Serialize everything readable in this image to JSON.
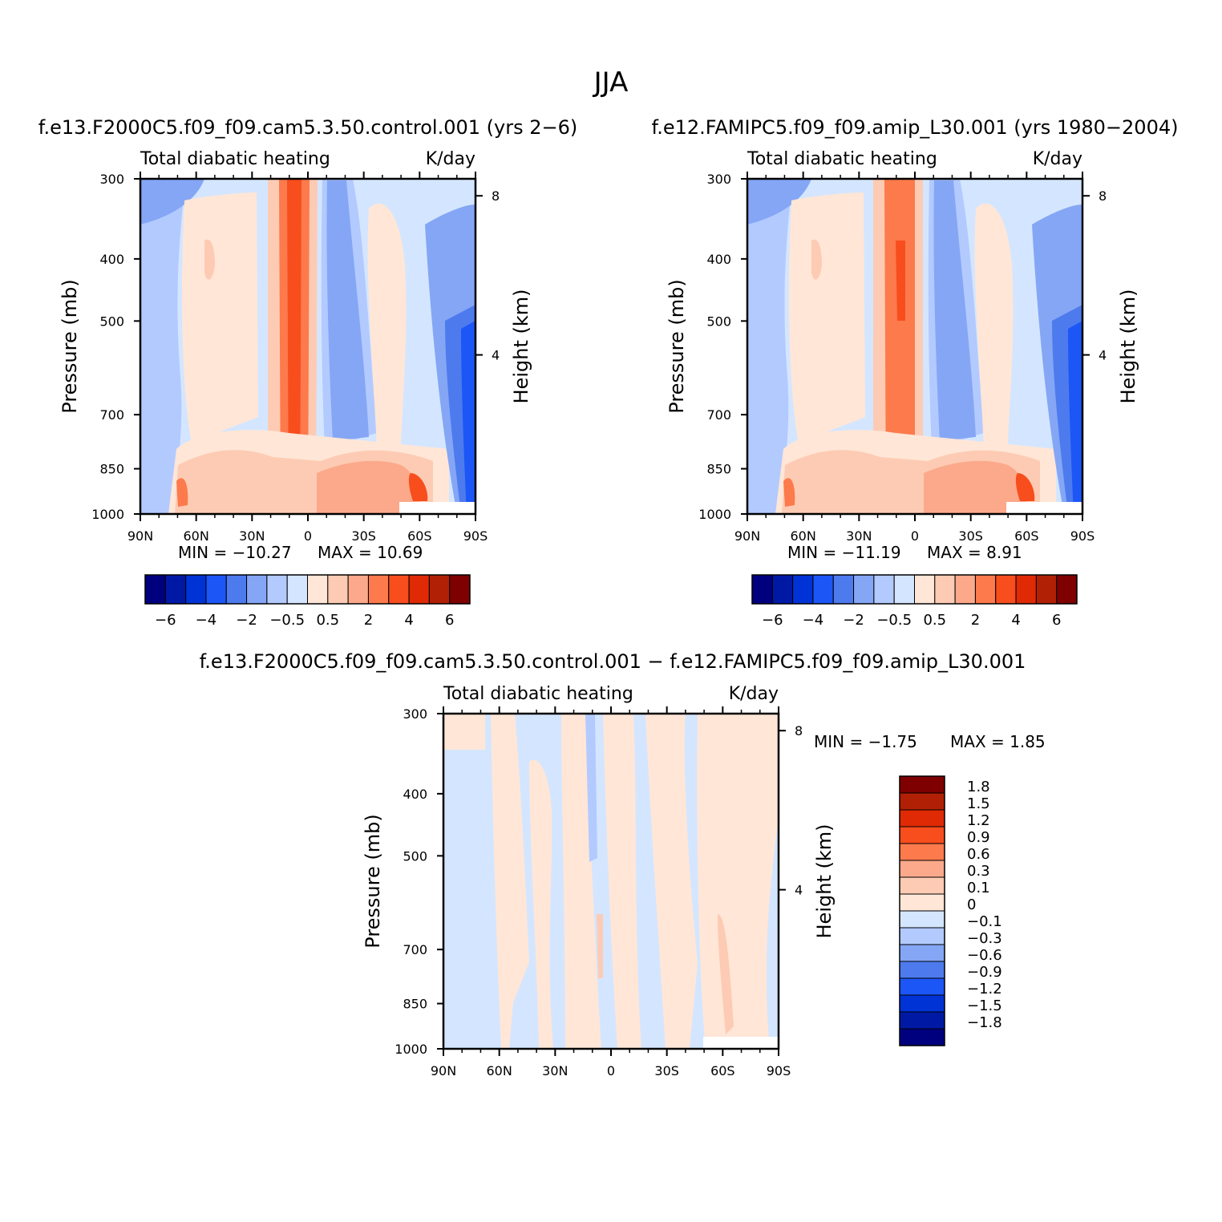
{
  "figure_title": "JJA",
  "chart_data": [
    {
      "type": "heatmap",
      "run": "f.e13.F2000C5.f09_f09.cam5.3.50.control.001  (yrs 2−6)",
      "variable": "Total diabatic heating",
      "units": "K/day",
      "min_text": "MIN = −10.27",
      "max_text": "MAX = 10.69",
      "ylabel": "Pressure (mb)",
      "y2label": "Height (km)",
      "pressure_ticks": [
        300,
        400,
        500,
        700,
        850,
        1000
      ],
      "height_ticks": [
        8,
        4
      ],
      "lat_ticks": [
        90,
        60,
        30,
        0,
        -30,
        -60,
        -90
      ],
      "lat_tick_labels": [
        "90N",
        "60N",
        "30N",
        "0",
        "30S",
        "60S",
        "90S"
      ],
      "xlim": [
        90,
        -90
      ],
      "ylim_mb": [
        1000,
        300
      ],
      "colorbar": {
        "levels": [
          -6,
          -5,
          -4,
          -3,
          -2,
          -1,
          -0.5,
          0,
          0.5,
          1,
          2,
          3,
          4,
          5,
          6
        ],
        "labels": [
          "−6",
          "−4",
          "−2",
          "−0.5",
          "0.5",
          "2",
          "4",
          "6"
        ]
      },
      "features": [
        {
          "name": "itcz-convective-heating",
          "lat": 10,
          "pmin": 300,
          "pmax": 1000,
          "value": 4.5
        },
        {
          "name": "sh-subsidence-cooling",
          "lat": -20,
          "pmin": 350,
          "pmax": 870,
          "value": -2.5
        },
        {
          "name": "sh-storm-track-lowlevel-heating",
          "lat": -60,
          "pmin": 850,
          "pmax": 1000,
          "value": 3.5
        },
        {
          "name": "antarctic-cooling",
          "lat": -80,
          "pmin": 300,
          "pmax": 1000,
          "value": -4.5
        }
      ]
    },
    {
      "type": "heatmap",
      "run": "f.e12.FAMIPC5.f09_f09.amip_L30.001  (yrs 1980−2004)",
      "variable": "Total diabatic heating",
      "units": "K/day",
      "min_text": "MIN = −11.19",
      "max_text": "MAX = 8.91",
      "ylabel": "Pressure (mb)",
      "y2label": "Height (km)",
      "pressure_ticks": [
        300,
        400,
        500,
        700,
        850,
        1000
      ],
      "height_ticks": [
        8,
        4
      ],
      "lat_ticks": [
        90,
        60,
        30,
        0,
        -30,
        -60,
        -90
      ],
      "lat_tick_labels": [
        "90N",
        "60N",
        "30N",
        "0",
        "30S",
        "60S",
        "90S"
      ],
      "xlim": [
        90,
        -90
      ],
      "ylim_mb": [
        1000,
        300
      ],
      "colorbar": {
        "levels": [
          -6,
          -5,
          -4,
          -3,
          -2,
          -1,
          -0.5,
          0,
          0.5,
          1,
          2,
          3,
          4,
          5,
          6
        ],
        "labels": [
          "−6",
          "−4",
          "−2",
          "−0.5",
          "0.5",
          "2",
          "4",
          "6"
        ]
      },
      "features": [
        {
          "name": "itcz-convective-heating",
          "lat": 10,
          "pmin": 300,
          "pmax": 1000,
          "value": 4.5
        },
        {
          "name": "sh-subsidence-cooling",
          "lat": -20,
          "pmin": 350,
          "pmax": 870,
          "value": -2.5
        },
        {
          "name": "sh-storm-track-lowlevel-heating",
          "lat": -60,
          "pmin": 850,
          "pmax": 1000,
          "value": 3.5
        },
        {
          "name": "antarctic-cooling",
          "lat": -80,
          "pmin": 300,
          "pmax": 1000,
          "value": -4.5
        }
      ]
    },
    {
      "type": "heatmap",
      "run": "f.e13.F2000C5.f09_f09.cam5.3.50.control.001 − f.e12.FAMIPC5.f09_f09.amip_L30.001",
      "variable": "Total diabatic heating",
      "units": "K/day",
      "min_text": "MIN = −1.75",
      "max_text": "MAX = 1.85",
      "ylabel": "Pressure (mb)",
      "y2label": "Height (km)",
      "pressure_ticks": [
        300,
        400,
        500,
        700,
        850,
        1000
      ],
      "height_ticks": [
        8,
        4
      ],
      "lat_ticks": [
        90,
        60,
        30,
        0,
        -30,
        -60,
        -90
      ],
      "lat_tick_labels": [
        "90N",
        "60N",
        "30N",
        "0",
        "30S",
        "60S",
        "90S"
      ],
      "xlim": [
        90,
        -90
      ],
      "ylim_mb": [
        1000,
        300
      ],
      "colorbar": {
        "levels": [
          -1.8,
          -1.5,
          -1.2,
          -0.9,
          -0.6,
          -0.3,
          -0.1,
          0,
          0.1,
          0.3,
          0.6,
          0.9,
          1.2,
          1.5,
          1.8
        ],
        "labels": [
          "1.8",
          "1.5",
          "1.2",
          "0.9",
          "0.6",
          "0.3",
          "0.1",
          "0",
          "−0.1",
          "−0.3",
          "−0.6",
          "−0.9",
          "−1.2",
          "−1.5",
          "−1.8"
        ]
      }
    }
  ],
  "colors": {
    "blues_dark_to_light": [
      "#00007f",
      "#0019a5",
      "#0033d6",
      "#1c56f6",
      "#4d7bee",
      "#84a6f5",
      "#b3caff",
      "#d4e6ff"
    ],
    "reds_light_to_dark": [
      "#ffe6d7",
      "#fdcbb3",
      "#fca98b",
      "#fc7a4c",
      "#f84d1d",
      "#df2a05",
      "#b12004",
      "#7f0000"
    ]
  }
}
